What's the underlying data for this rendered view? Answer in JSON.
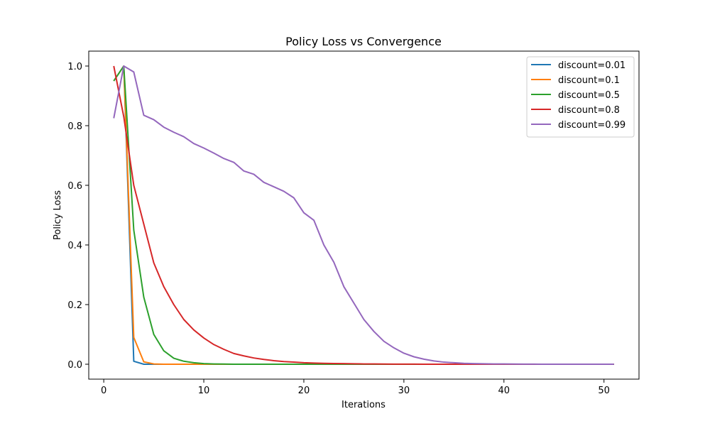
{
  "chart_data": {
    "type": "line",
    "title": "Policy Loss vs Convergence",
    "xlabel": "Iterations",
    "ylabel": "Policy Loss",
    "xlim": [
      -1.5,
      53.5
    ],
    "ylim": [
      -0.05,
      1.05
    ],
    "xticks": [
      0,
      10,
      20,
      30,
      40,
      50
    ],
    "yticks": [
      0.0,
      0.2,
      0.4,
      0.6,
      0.8,
      1.0
    ],
    "grid": false,
    "legend_position": "top-right",
    "x": [
      1,
      2,
      3,
      4,
      5,
      6,
      7,
      8,
      9,
      10,
      11,
      12,
      13,
      14,
      15,
      16,
      17,
      18,
      19,
      20,
      21,
      22,
      23,
      24,
      25,
      26,
      27,
      28,
      29,
      30,
      31,
      32,
      33,
      34,
      35,
      36,
      37,
      38,
      39,
      40,
      41,
      42,
      43,
      44,
      45,
      46,
      47,
      48,
      49,
      50,
      51
    ],
    "series": [
      {
        "name": "discount=0.01",
        "color": "#1f77b4",
        "values": [
          0.95,
          1.0,
          0.01,
          0.0,
          0,
          0,
          0,
          0,
          0,
          0,
          0,
          0,
          0,
          0,
          0,
          0,
          0,
          0,
          0,
          0,
          0,
          0,
          0,
          0,
          0,
          0,
          0,
          0,
          0,
          0,
          0,
          0,
          0,
          0,
          0,
          0,
          0,
          0,
          0,
          0,
          0,
          0,
          0,
          0,
          0,
          0,
          0,
          0,
          0,
          0,
          0
        ]
      },
      {
        "name": "discount=0.1",
        "color": "#ff7f0e",
        "values": [
          0.95,
          1.0,
          0.09,
          0.008,
          0.001,
          0,
          0,
          0,
          0,
          0,
          0,
          0,
          0,
          0,
          0,
          0,
          0,
          0,
          0,
          0,
          0,
          0,
          0,
          0,
          0,
          0,
          0,
          0,
          0,
          0,
          0,
          0,
          0,
          0,
          0,
          0,
          0,
          0,
          0,
          0,
          0,
          0,
          0,
          0,
          0,
          0,
          0,
          0,
          0,
          0,
          0
        ]
      },
      {
        "name": "discount=0.5",
        "color": "#2ca02c",
        "values": [
          0.95,
          1.0,
          0.45,
          0.225,
          0.1,
          0.045,
          0.02,
          0.01,
          0.005,
          0.002,
          0.001,
          0.0005,
          0,
          0,
          0,
          0,
          0,
          0,
          0,
          0,
          0,
          0,
          0,
          0,
          0,
          0,
          0,
          0,
          0,
          0,
          0,
          0,
          0,
          0,
          0,
          0,
          0,
          0,
          0,
          0,
          0,
          0,
          0,
          0,
          0,
          0,
          0,
          0,
          0,
          0,
          0
        ]
      },
      {
        "name": "discount=0.8",
        "color": "#d62728",
        "values": [
          1.0,
          0.83,
          0.6,
          0.47,
          0.34,
          0.26,
          0.2,
          0.15,
          0.115,
          0.088,
          0.066,
          0.05,
          0.036,
          0.028,
          0.021,
          0.016,
          0.012,
          0.009,
          0.007,
          0.005,
          0.004,
          0.003,
          0.0025,
          0.002,
          0.0015,
          0.001,
          0.0008,
          0.0006,
          0.0004,
          0.0003,
          0.0002,
          0.0001,
          0,
          0,
          0,
          0,
          0,
          0,
          0,
          0,
          0,
          0,
          0,
          0,
          0,
          0,
          0,
          0,
          0,
          0,
          0
        ]
      },
      {
        "name": "discount=0.99",
        "color": "#9467bd",
        "values": [
          0.825,
          1.0,
          0.98,
          0.835,
          0.82,
          0.795,
          0.778,
          0.763,
          0.74,
          0.725,
          0.708,
          0.69,
          0.677,
          0.648,
          0.637,
          0.61,
          0.595,
          0.58,
          0.558,
          0.508,
          0.483,
          0.4,
          0.342,
          0.26,
          0.205,
          0.15,
          0.11,
          0.077,
          0.055,
          0.037,
          0.025,
          0.017,
          0.011,
          0.007,
          0.005,
          0.003,
          0.002,
          0.0015,
          0.001,
          0.0008,
          0.0005,
          0.0003,
          0.0002,
          0.0001,
          0,
          0,
          0,
          0,
          0,
          0,
          0
        ]
      }
    ]
  }
}
